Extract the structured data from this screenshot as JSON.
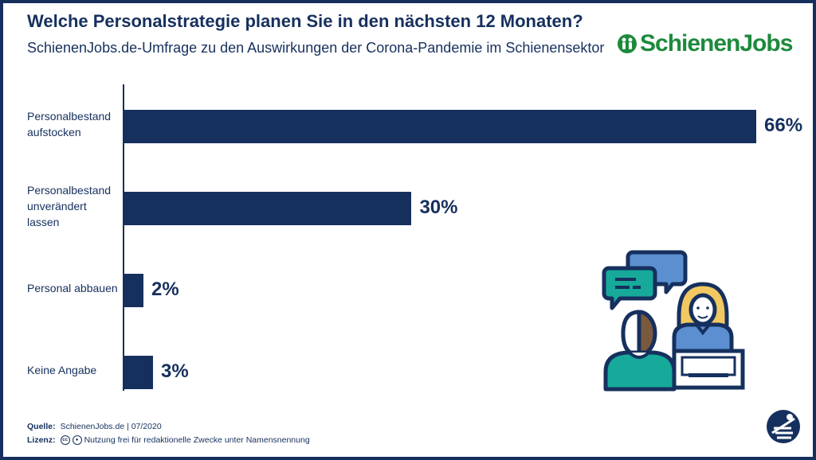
{
  "header": {
    "title": "Welche Personalstrategie planen Sie in den nächsten 12 Monaten?",
    "subtitle": "SchienenJobs.de-Umfrage zu den Auswirkungen der Corona-Pandemie im Schienensektor",
    "logo_text": "SchienenJobs"
  },
  "colors": {
    "primary": "#16305e",
    "brand_green": "#1d8a3c",
    "accent_blue": "#5b8fd0",
    "accent_teal": "#17a99a",
    "accent_yellow": "#f2c862"
  },
  "chart_data": {
    "type": "bar",
    "orientation": "horizontal",
    "title": "Welche Personalstrategie planen Sie in den nächsten 12 Monaten?",
    "subtitle": "SchienenJobs.de-Umfrage zu den Auswirkungen der Corona-Pandemie im Schienensektor",
    "categories": [
      "Personalbestand\naufstocken",
      "Personalbestand\nunverändert\nlassen",
      "Personal abbauen",
      "Keine Angabe"
    ],
    "values": [
      66,
      30,
      2,
      3
    ],
    "value_labels": [
      "66%",
      "30%",
      "2%",
      "3%"
    ],
    "unit": "%",
    "xlim": [
      0,
      66
    ],
    "grid": false,
    "legend": "none"
  },
  "footer": {
    "source_key": "Quelle:",
    "source_value": "SchienenJobs.de | 07/2020",
    "license_key": "Lizenz:",
    "license_cc": "cc",
    "license_value": "Nutzung frei für redaktionelle Zwecke unter Namensnennung"
  },
  "icons": [
    "schienenjobs-logo-icon",
    "people-chat-illustration",
    "cc-license-icon",
    "attribution-icon",
    "schienenjobs-brand-icon"
  ]
}
